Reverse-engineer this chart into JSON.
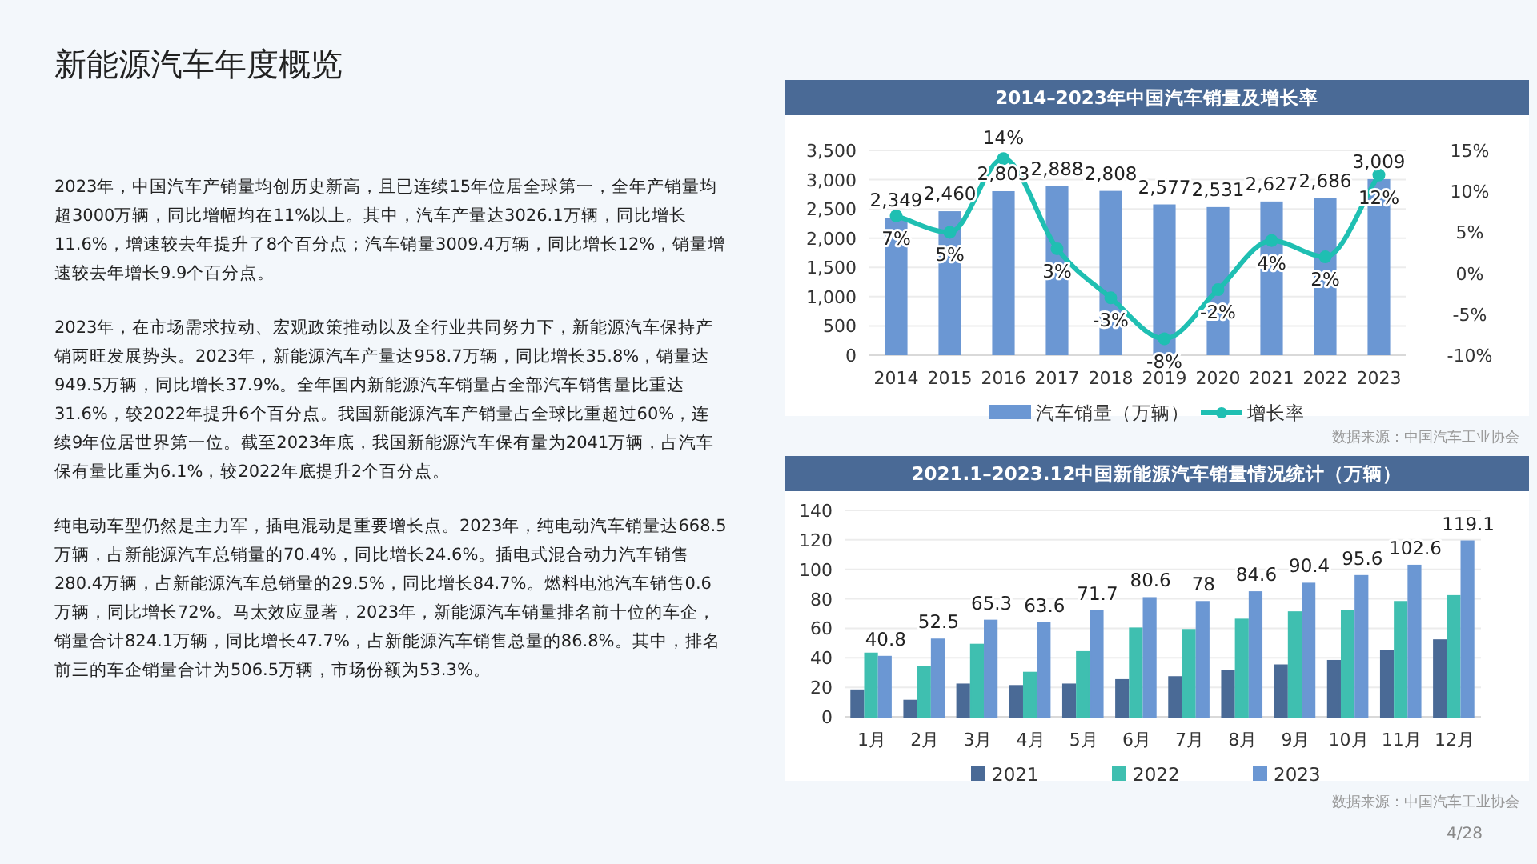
{
  "chart_data": [
    {
      "type": "other",
      "title": "新能源汽车年度概览",
      "annotations": [
        "2023年，中国汽车产销量均创历史新高，且已连续15年位居全球第一，全年产销量均超3000万辆，同比增幅均在11%以上。其中，汽车产量达3026.1万辆，同比增长11.6%，增速较去年提升了8个百分点；汽车销量3009.4万辆，同比增长12%，销量增速较去年增长9.9个百分点。",
        "2023年，在市场需求拉动、宏观政策推动以及全行业共同努力下，新能源汽车保持产销两旺发展势头。2023年，新能源汽车产量达958.7万辆，同比增长35.8%，销量达949.5万辆，同比增长37.9%。全年国内新能源汽车销量占全部汽车销售量比重达31.6%，较2022年提升6个百分点。我国新能源汽车产销量占全球比重超过60%，连续9年位居世界第一位。截至2023年底，我国新能源汽车保有量为2041万辆，占汽车保有量比重为6.1%，较2022年底提升2个百分点。",
        "纯电动车型仍然是主力军，插电混动是重要增长点。2023年，纯电动汽车销量达668.5万辆，占新能源汽车总销量的70.4%，同比增长24.6%。插电式混合动力汽车销售280.4万辆，占新能源汽车总销量的29.5%，同比增长84.7%。燃料电池汽车销售0.6万辆，同比增长72%。马太效应显著，2023年，新能源汽车销量排名前十位的车企，销量合计824.1万辆，同比增长47.7%，占新能源汽车销售总量的86.8%。其中，排名前三的车企销量合计为506.5万辆，市场份额为53.3%。",
        "4/28"
      ]
    },
    {
      "type": "bar",
      "title": "2014–2023年中国汽车销量及增长率",
      "categories": [
        "2014",
        "2015",
        "2016",
        "2017",
        "2018",
        "2019",
        "2020",
        "2021",
        "2022",
        "2023"
      ],
      "series": [
        {
          "name": "汽车销量（万辆）",
          "type": "bar",
          "color": "#6b97d3",
          "values": [
            2349,
            2460,
            2803,
            2888,
            2808,
            2577,
            2531,
            2627,
            2686,
            3009
          ],
          "value_labels": [
            "2,349",
            "2,460",
            "2,803",
            "2,888",
            "2,808",
            "2,577",
            "2,531",
            "2,627",
            "2,686",
            "3,009"
          ]
        },
        {
          "name": "增长率",
          "type": "line",
          "axis": "y2",
          "color": "#1fbfb2",
          "values": [
            7,
            5,
            14,
            3,
            -3,
            -8,
            -2,
            4,
            2,
            12
          ],
          "value_labels": [
            "7%",
            "5%",
            "14%",
            "3%",
            "-3%",
            "-8%",
            "-2%",
            "4%",
            "2%",
            "12%"
          ]
        }
      ],
      "ylim": [
        0,
        3500
      ],
      "yticks": [
        0,
        500,
        {
          "value": 1000,
          "label": "1,000"
        },
        {
          "value": 1500,
          "label": "1,500"
        },
        {
          "value": 2000,
          "label": "2,000"
        },
        {
          "value": 2500,
          "label": "2,500"
        },
        {
          "value": 3000,
          "label": "3,000"
        },
        {
          "value": 3500,
          "label": "3,500"
        }
      ],
      "y2lim": [
        -10,
        15
      ],
      "y2ticks": [
        {
          "value": -10,
          "label": "-10%"
        },
        {
          "value": -5,
          "label": "-5%"
        },
        {
          "value": 0,
          "label": "0%"
        },
        {
          "value": 5,
          "label": "5%"
        },
        {
          "value": 10,
          "label": "10%"
        },
        {
          "value": 15,
          "label": "15%"
        }
      ],
      "marker": "circle",
      "grid": "y",
      "legend": "bottom",
      "annotations": [
        "数据来源：中国汽车工业协会"
      ]
    },
    {
      "type": "bar",
      "title": "2021.1–2023.12中国新能源汽车销量情况统计（万辆）",
      "categories": [
        "1月",
        "2月",
        "3月",
        "4月",
        "5月",
        "6月",
        "7月",
        "8月",
        "9月",
        "10月",
        "11月",
        "12月"
      ],
      "series": [
        {
          "name": "2021",
          "color": "#4a6a96",
          "values": [
            18,
            11,
            22,
            21,
            22,
            25,
            27,
            31,
            35,
            38,
            45,
            52
          ]
        },
        {
          "name": "2022",
          "color": "#3fbfb0",
          "values": [
            43,
            34,
            49,
            30,
            44,
            60,
            59,
            66,
            71,
            72,
            78,
            82
          ]
        },
        {
          "name": "2023",
          "color": "#6b97d3",
          "values": [
            40.8,
            52.5,
            65.3,
            63.6,
            71.7,
            80.6,
            78,
            84.6,
            90.4,
            95.6,
            102.6,
            119.1
          ],
          "value_labels": [
            "40.8",
            "52.5",
            "65.3",
            "63.6",
            "71.7",
            "80.6",
            "78",
            "84.6",
            "90.4",
            "95.6",
            "102.6",
            "119.1"
          ]
        }
      ],
      "ylim": [
        0,
        140
      ],
      "yticks": [
        0,
        20,
        40,
        60,
        80,
        100,
        120,
        140
      ],
      "grid": "y",
      "legend": "bottom",
      "annotations": [
        "数据来源：中国汽车工业协会"
      ]
    }
  ]
}
